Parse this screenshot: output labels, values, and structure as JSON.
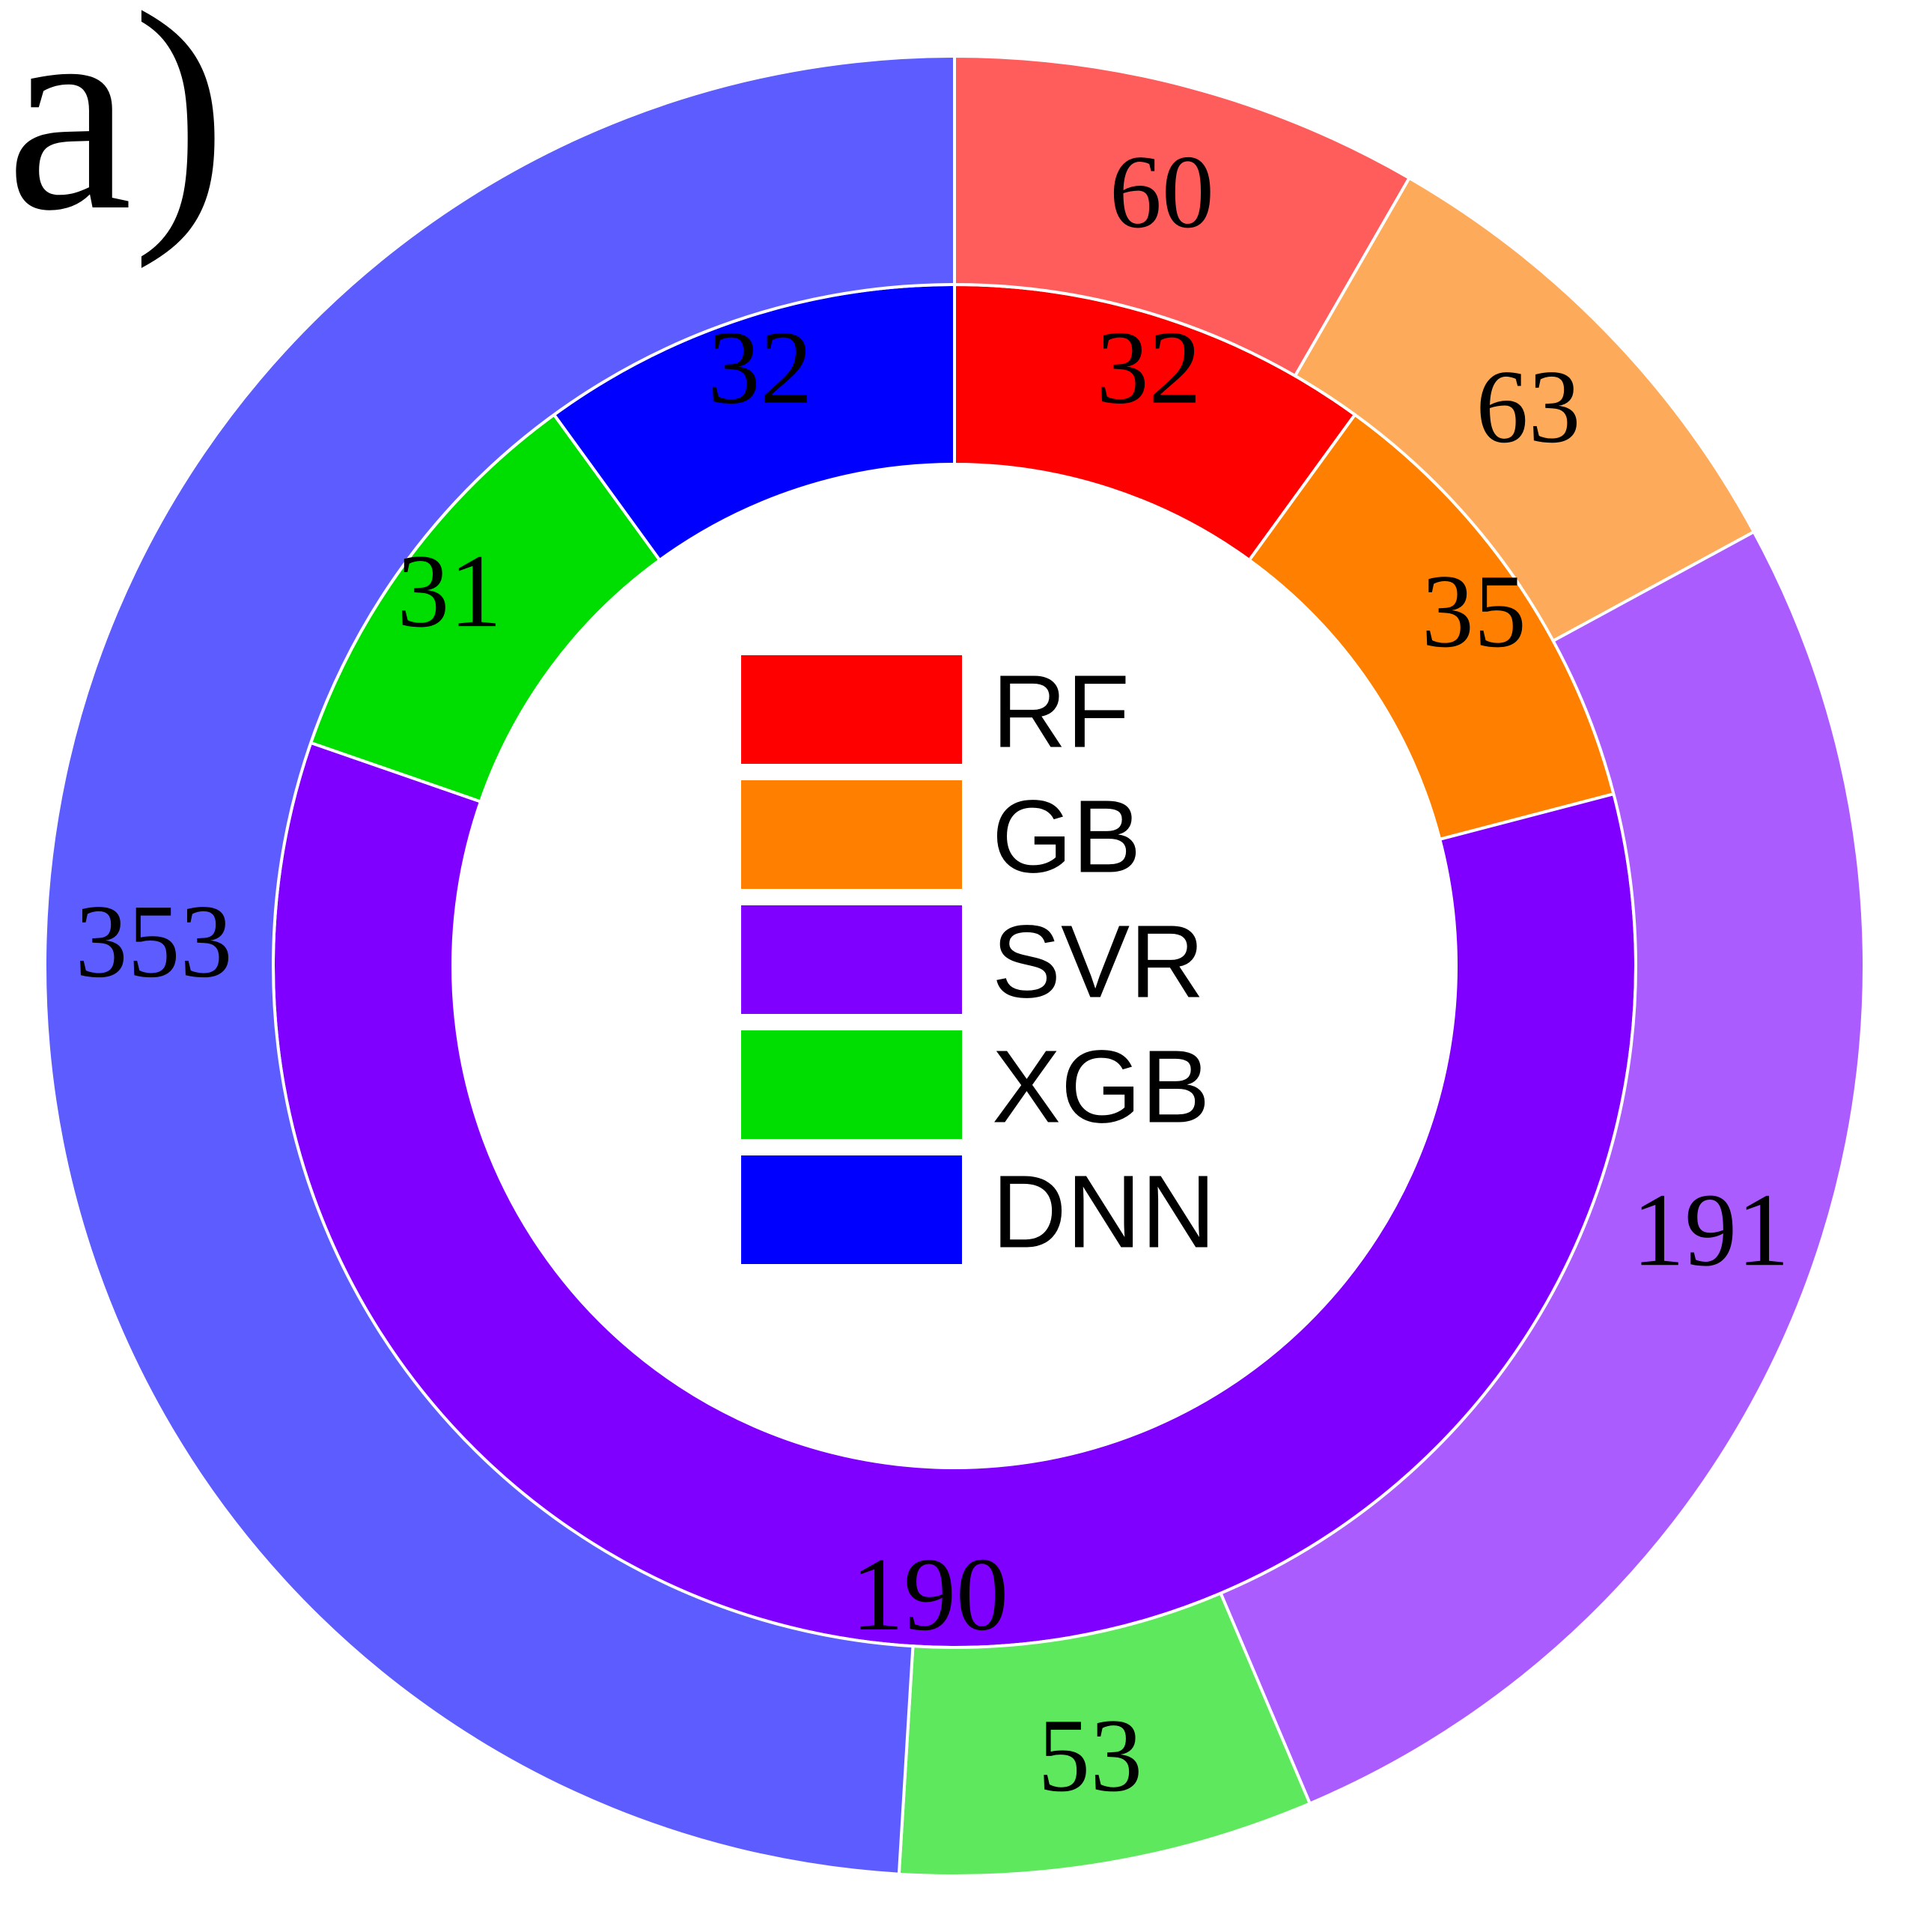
{
  "panel_label": "a)",
  "chart_data": {
    "type": "pie",
    "subtype": "nested-donut",
    "legend": {
      "placement": "center",
      "entries": [
        {
          "name": "RF",
          "color": "#ff0000"
        },
        {
          "name": "GB",
          "color": "#ff8000"
        },
        {
          "name": "SVR",
          "color": "#8000ff"
        },
        {
          "name": "XGB",
          "color": "#00dd00"
        },
        {
          "name": "DNN",
          "color": "#0000ff"
        }
      ]
    },
    "rings": [
      {
        "ring": "inner",
        "slices": [
          {
            "category": "RF",
            "value": 32,
            "color": "#ff0000"
          },
          {
            "category": "GB",
            "value": 35,
            "color": "#ff8000"
          },
          {
            "category": "SVR",
            "value": 190,
            "color": "#8000ff"
          },
          {
            "category": "XGB",
            "value": 31,
            "color": "#00dd00"
          },
          {
            "category": "DNN",
            "value": 32,
            "color": "#0000ff"
          }
        ]
      },
      {
        "ring": "outer",
        "slices": [
          {
            "category": "RF",
            "value": 60,
            "color": "#ff5c5c"
          },
          {
            "category": "GB",
            "value": 63,
            "color": "#fdab5b"
          },
          {
            "category": "SVR",
            "value": 191,
            "color": "#ab5cff"
          },
          {
            "category": "XGB",
            "value": 53,
            "color": "#5de85d"
          },
          {
            "category": "DNN",
            "value": 353,
            "color": "#5c5cff"
          }
        ]
      }
    ]
  }
}
